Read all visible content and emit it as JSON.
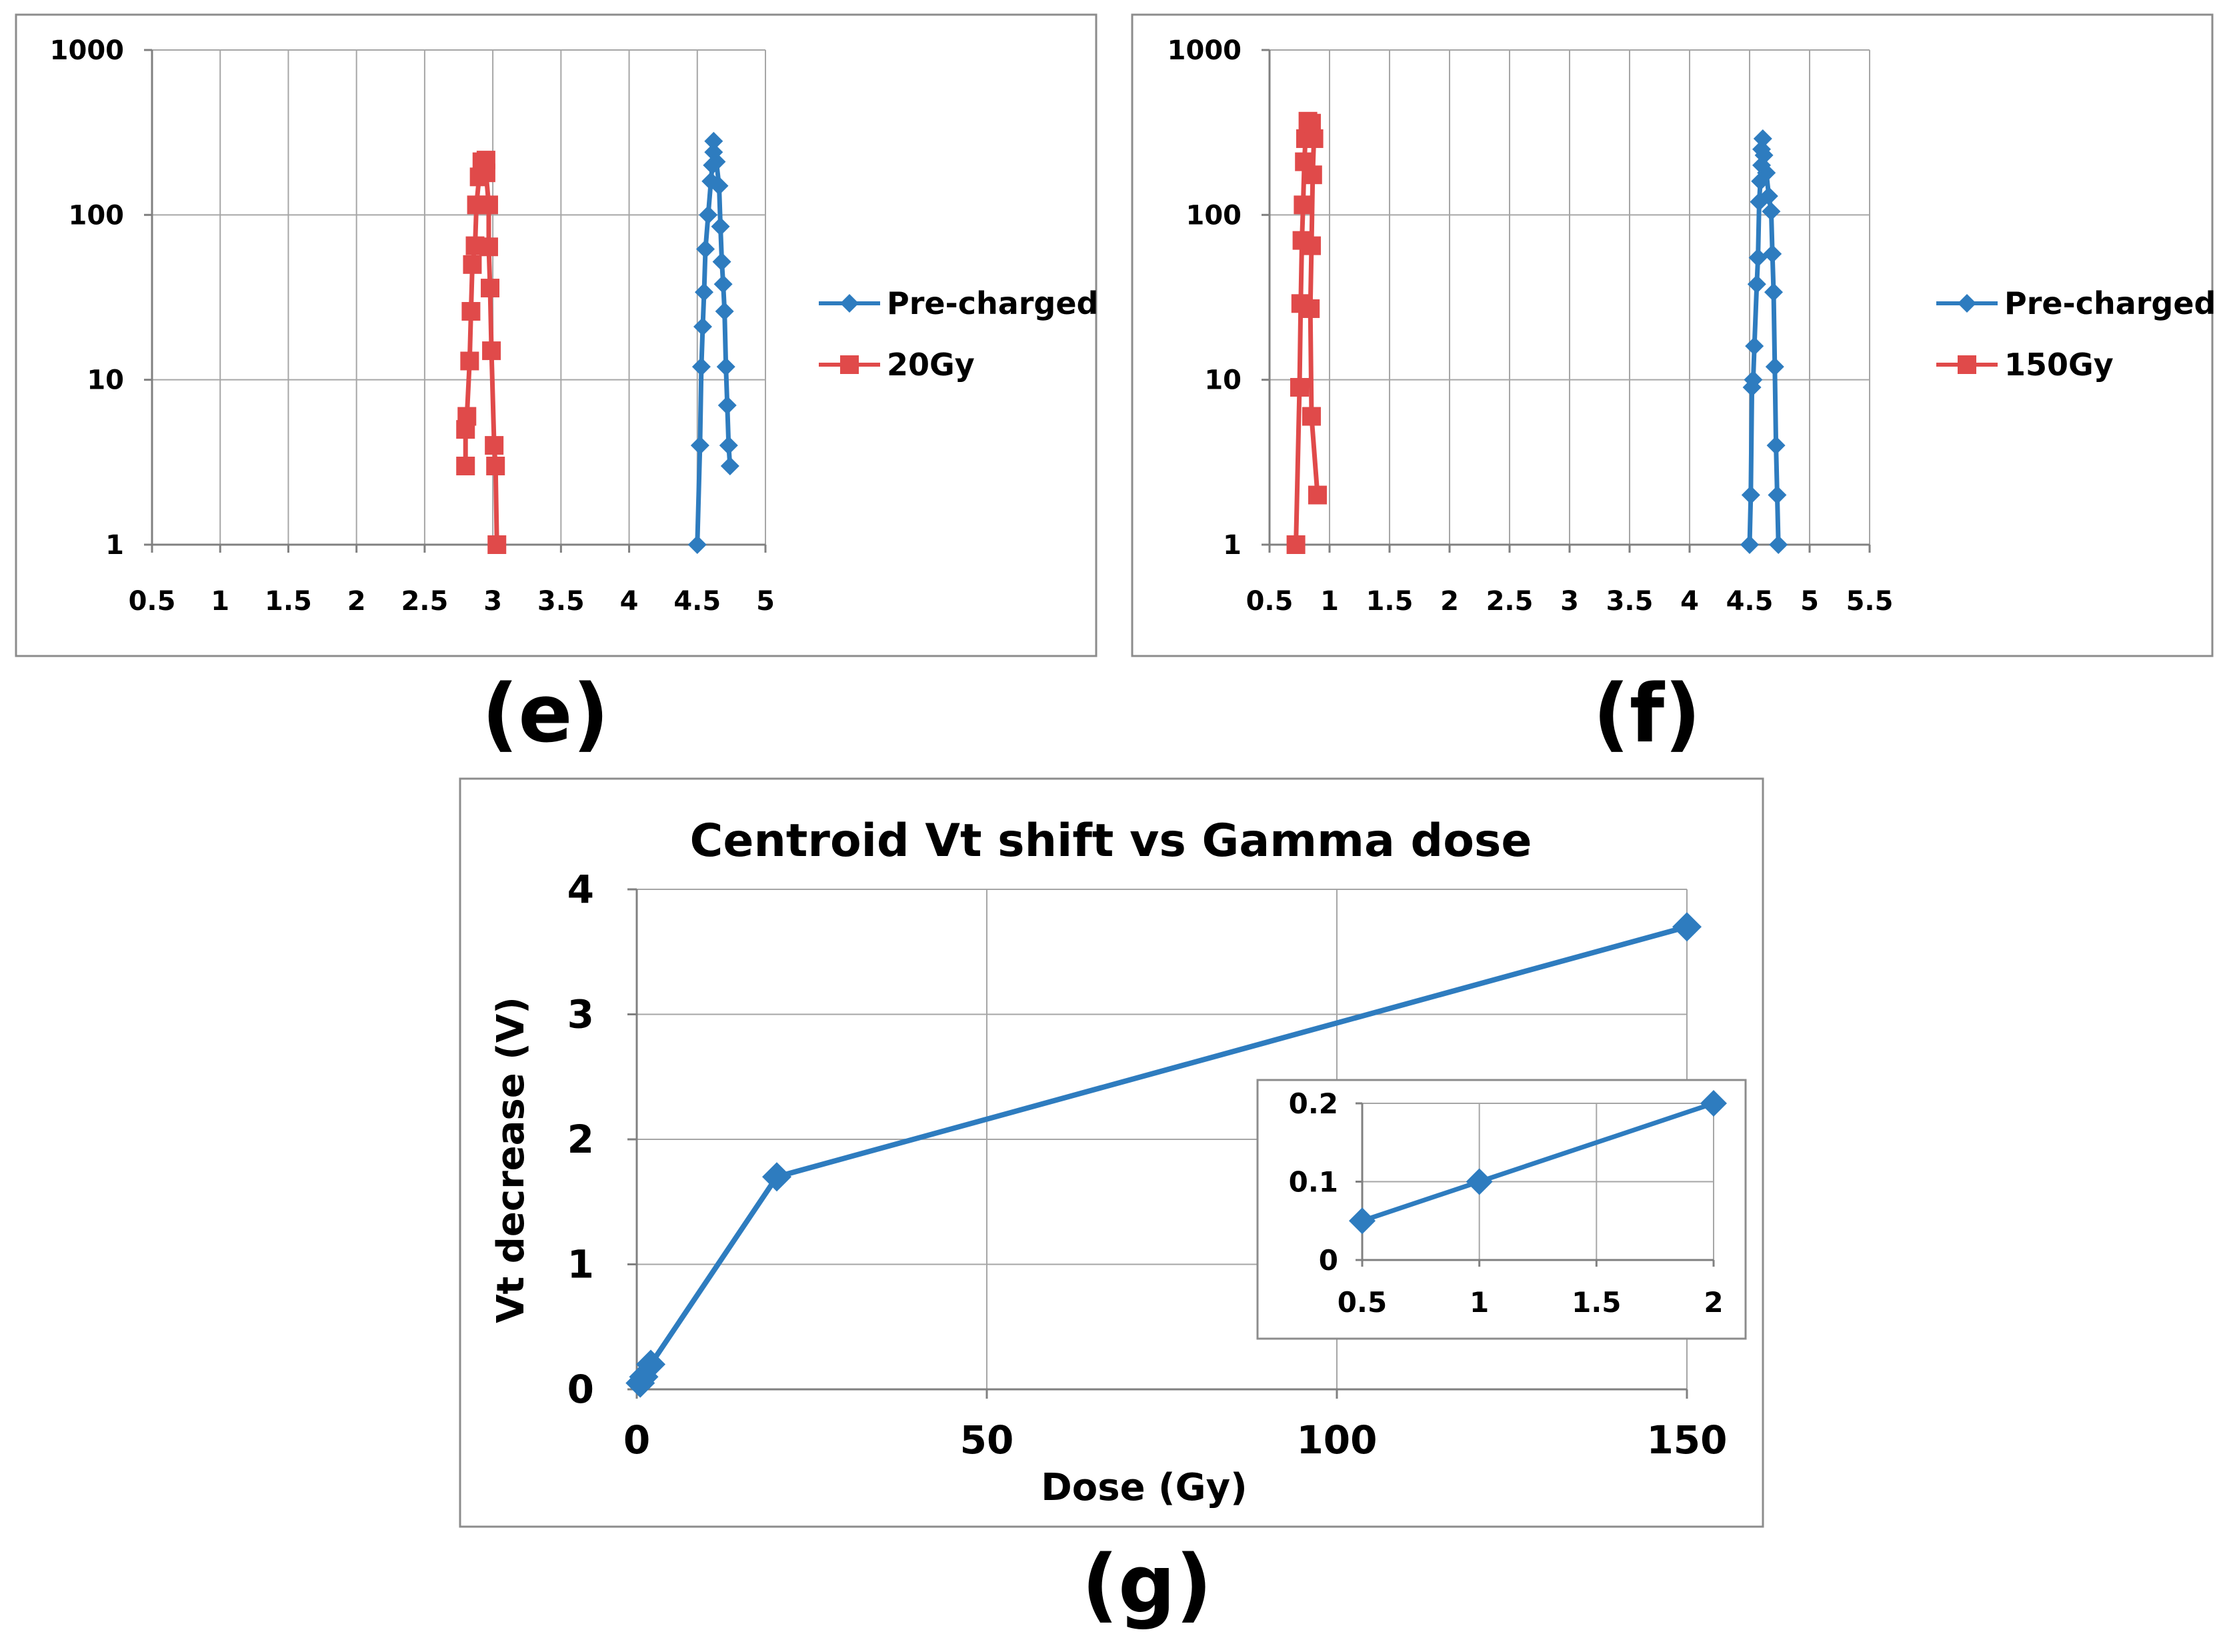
{
  "colors": {
    "blue": "#2e7cbf",
    "red": "#e04a4a"
  },
  "chart_data": [
    {
      "panel_label": "(e)",
      "type": "line",
      "x_ticks": [
        "0.5",
        "1",
        "1.5",
        "2",
        "2.5",
        "3",
        "3.5",
        "4",
        "4.5",
        "5"
      ],
      "y_ticks": [
        "1",
        "10",
        "100",
        "1000"
      ],
      "xlim": [
        0.5,
        5
      ],
      "ylim": [
        1,
        1000
      ],
      "y_scale": "log",
      "grid": true,
      "legend": "right",
      "series": [
        {
          "name": "Pre-charged",
          "marker": "diamond",
          "color": "blue",
          "points": [
            [
              4.5,
              1
            ],
            [
              4.52,
              4
            ],
            [
              4.53,
              12
            ],
            [
              4.54,
              21
            ],
            [
              4.55,
              34
            ],
            [
              4.56,
              62
            ],
            [
              4.58,
              100
            ],
            [
              4.6,
              160
            ],
            [
              4.61,
              200
            ],
            [
              4.62,
              240
            ],
            [
              4.62,
              280
            ],
            [
              4.64,
              210
            ],
            [
              4.66,
              150
            ],
            [
              4.67,
              85
            ],
            [
              4.68,
              52
            ],
            [
              4.69,
              38
            ],
            [
              4.7,
              26
            ],
            [
              4.71,
              12
            ],
            [
              4.72,
              7
            ],
            [
              4.73,
              4
            ],
            [
              4.74,
              3
            ]
          ]
        },
        {
          "name": "20Gy",
          "marker": "square",
          "color": "red",
          "points": [
            [
              3.03,
              1
            ],
            [
              3.02,
              3
            ],
            [
              3.01,
              4
            ],
            [
              2.99,
              15
            ],
            [
              2.98,
              36
            ],
            [
              2.97,
              64
            ],
            [
              2.97,
              115
            ],
            [
              2.95,
              180
            ],
            [
              2.95,
              215
            ],
            [
              2.92,
              210
            ],
            [
              2.9,
              170
            ],
            [
              2.88,
              115
            ],
            [
              2.87,
              65
            ],
            [
              2.85,
              50
            ],
            [
              2.84,
              26
            ],
            [
              2.83,
              13
            ],
            [
              2.81,
              6
            ],
            [
              2.8,
              5
            ],
            [
              2.8,
              3
            ]
          ]
        }
      ]
    },
    {
      "panel_label": "(f)",
      "type": "line",
      "x_ticks": [
        "0.5",
        "1",
        "1.5",
        "2",
        "2.5",
        "3",
        "3.5",
        "4",
        "4.5",
        "5",
        "5.5"
      ],
      "y_ticks": [
        "1",
        "10",
        "100",
        "1000"
      ],
      "xlim": [
        0.5,
        5.5
      ],
      "ylim": [
        1,
        1000
      ],
      "y_scale": "log",
      "grid": true,
      "legend": "right",
      "series": [
        {
          "name": "Pre-charged",
          "marker": "diamond",
          "color": "blue",
          "points": [
            [
              4.5,
              1
            ],
            [
              4.51,
              2
            ],
            [
              4.52,
              9
            ],
            [
              4.53,
              10
            ],
            [
              4.54,
              16
            ],
            [
              4.56,
              38
            ],
            [
              4.57,
              55
            ],
            [
              4.58,
              120
            ],
            [
              4.59,
              160
            ],
            [
              4.6,
              200
            ],
            [
              4.6,
              250
            ],
            [
              4.61,
              290
            ],
            [
              4.62,
              230
            ],
            [
              4.64,
              180
            ],
            [
              4.66,
              130
            ],
            [
              4.68,
              105
            ],
            [
              4.69,
              58
            ],
            [
              4.7,
              34
            ],
            [
              4.71,
              12
            ],
            [
              4.72,
              4
            ],
            [
              4.73,
              2
            ],
            [
              4.74,
              1
            ]
          ]
        },
        {
          "name": "150Gy",
          "marker": "square",
          "color": "red",
          "points": [
            [
              0.72,
              1
            ],
            [
              0.75,
              9
            ],
            [
              0.76,
              29
            ],
            [
              0.77,
              70
            ],
            [
              0.78,
              115
            ],
            [
              0.79,
              210
            ],
            [
              0.8,
              290
            ],
            [
              0.82,
              370
            ],
            [
              0.85,
              360
            ],
            [
              0.87,
              290
            ],
            [
              0.86,
              175
            ],
            [
              0.85,
              65
            ],
            [
              0.84,
              27
            ],
            [
              0.85,
              6
            ],
            [
              0.9,
              2
            ]
          ]
        }
      ]
    },
    {
      "panel_label": "(g)",
      "type": "line",
      "title": "Centroid Vt shift vs Gamma dose",
      "xlabel": "Dose (Gy)",
      "ylabel": "Vt decrease (V)",
      "x_ticks": [
        "0",
        "50",
        "100",
        "150"
      ],
      "y_ticks": [
        "0",
        "1",
        "2",
        "3",
        "4"
      ],
      "xlim": [
        0,
        150
      ],
      "ylim": [
        0,
        4
      ],
      "grid": true,
      "series": [
        {
          "name": "",
          "marker": "diamond",
          "color": "blue",
          "points": [
            [
              0.5,
              0.05
            ],
            [
              1,
              0.1
            ],
            [
              2,
              0.2
            ],
            [
              20,
              1.7
            ],
            [
              150,
              3.7
            ]
          ]
        }
      ],
      "inset": {
        "x_ticks": [
          "0.5",
          "1",
          "1.5",
          "2"
        ],
        "y_ticks": [
          "0",
          "0.1",
          "0.2"
        ],
        "xlim": [
          0.5,
          2
        ],
        "ylim": [
          0,
          0.2
        ],
        "grid": true,
        "series": [
          {
            "name": "",
            "marker": "diamond",
            "color": "blue",
            "points": [
              [
                0.5,
                0.05
              ],
              [
                1,
                0.1
              ],
              [
                2,
                0.2
              ]
            ]
          }
        ]
      }
    }
  ]
}
